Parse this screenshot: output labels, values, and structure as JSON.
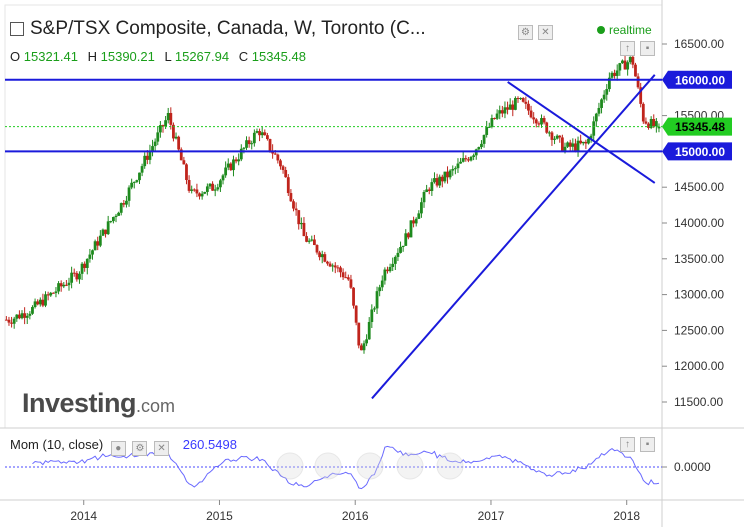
{
  "header": {
    "title": "S&P/TSX Composite, Canada, W, Toronto (C...",
    "realtime": "realtime"
  },
  "ohlc": {
    "o_label": "O",
    "o": "15321.41",
    "h_label": "H",
    "h": "15390.21",
    "l_label": "L",
    "l": "15267.94",
    "c_label": "C",
    "c": "15345.48"
  },
  "logo": {
    "main": "Investing",
    "suffix": ".com"
  },
  "momentum": {
    "label": "Mom (10, close)",
    "value": "260.5498",
    "zero_label": "0.0000"
  },
  "colors": {
    "up": "#1e8a1e",
    "down": "#c0241c",
    "trendline": "#1a1adb",
    "momentum": "#6a6aff",
    "last_badge": "#22cc22"
  },
  "chart_data": {
    "type": "candlestick",
    "x_ticks": [
      "2014",
      "2015",
      "2016",
      "2017",
      "2018"
    ],
    "y_ticks": [
      11500,
      12000,
      12500,
      13000,
      13500,
      14000,
      14500,
      15000,
      15500,
      16000,
      16500
    ],
    "ylim": [
      11200,
      16600
    ],
    "price_badges": [
      {
        "label": "16000.00",
        "value": 16000
      },
      {
        "label": "15345.48",
        "value": 15345.48,
        "last": true
      },
      {
        "label": "15000.00",
        "value": 15000
      }
    ],
    "horizontal_lines": [
      16000,
      15000
    ],
    "trendlines": [
      {
        "from": [
          "2016-02",
          11550
        ],
        "to": [
          "2018-03",
          16070
        ]
      },
      {
        "from": [
          "2017-02",
          15970
        ],
        "to": [
          "2018-03",
          14560
        ]
      }
    ],
    "series": [
      {
        "name": "weekly close",
        "x": [
          "2013-06",
          "2013-08",
          "2013-10",
          "2013-12",
          "2014-02",
          "2014-04",
          "2014-06",
          "2014-08",
          "2014-10",
          "2014-12",
          "2015-02",
          "2015-04",
          "2015-06",
          "2015-08",
          "2015-10",
          "2015-12",
          "2016-01",
          "2016-03",
          "2016-05",
          "2016-07",
          "2016-09",
          "2016-11",
          "2017-01",
          "2017-03",
          "2017-05",
          "2017-07",
          "2017-09",
          "2017-11",
          "2018-01",
          "2018-02",
          "2018-03"
        ],
        "values": [
          12650,
          12800,
          13050,
          13300,
          13800,
          14300,
          14900,
          15500,
          14400,
          14500,
          14900,
          15300,
          14800,
          13800,
          13500,
          13200,
          12150,
          13300,
          13800,
          14500,
          14700,
          15000,
          15500,
          15700,
          15400,
          15050,
          15100,
          16050,
          16300,
          15450,
          15345
        ]
      }
    ]
  }
}
